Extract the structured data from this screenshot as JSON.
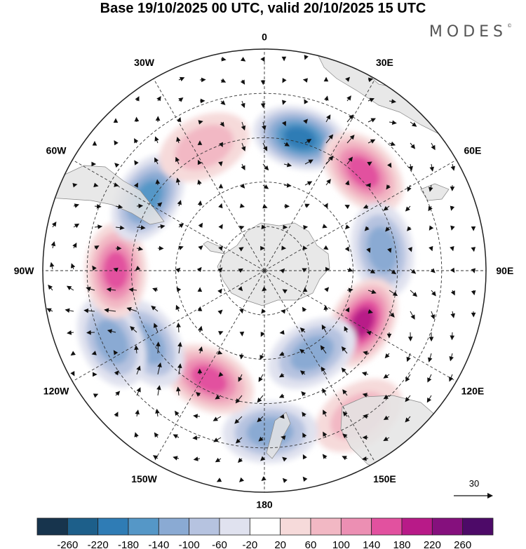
{
  "title": "Base 19/10/2025 00 UTC, valid 20/10/2025 15 UTC",
  "brand": "MODES",
  "brand_mark": "©",
  "longitude_labels": [
    {
      "text": "0",
      "deg": 0
    },
    {
      "text": "30E",
      "deg": 30
    },
    {
      "text": "60E",
      "deg": 60
    },
    {
      "text": "90E",
      "deg": 90
    },
    {
      "text": "120E",
      "deg": 120
    },
    {
      "text": "150E",
      "deg": 150
    },
    {
      "text": "180",
      "deg": 180
    },
    {
      "text": "150W",
      "deg": 210
    },
    {
      "text": "120W",
      "deg": 240
    },
    {
      "text": "90W",
      "deg": 270
    },
    {
      "text": "60W",
      "deg": 300
    },
    {
      "text": "30W",
      "deg": 330
    }
  ],
  "vector_reference": {
    "value": "30"
  },
  "colorbar": {
    "ticks": [
      "-260",
      "-220",
      "-180",
      "-140",
      "-100",
      "-60",
      "-20",
      "20",
      "60",
      "100",
      "140",
      "180",
      "220",
      "260"
    ],
    "colors": [
      "#17344d",
      "#1d5f8a",
      "#2f7cb5",
      "#5597c7",
      "#8aaad3",
      "#b6c3e0",
      "#e0e2ef",
      "#ffffff",
      "#f6dada",
      "#f2b8c4",
      "#ec8fb3",
      "#e2519f",
      "#b81a88",
      "#85107d",
      "#4d0a68"
    ]
  },
  "anomalies": [
    {
      "lon": 15,
      "r": 0.62,
      "value": -210
    },
    {
      "lon": 45,
      "r": 0.63,
      "value": 170
    },
    {
      "lon": 80,
      "r": 0.54,
      "value": -130
    },
    {
      "lon": 118,
      "r": 0.5,
      "value": 220
    },
    {
      "lon": 150,
      "r": 0.43,
      "value": -140
    },
    {
      "lon": 147,
      "r": 0.78,
      "value": 70
    },
    {
      "lon": 178,
      "r": 0.73,
      "value": -120
    },
    {
      "lon": 207,
      "r": 0.55,
      "value": 160
    },
    {
      "lon": 238,
      "r": 0.62,
      "value": -110
    },
    {
      "lon": 245,
      "r": 0.76,
      "value": -130
    },
    {
      "lon": 270,
      "r": 0.67,
      "value": 160
    },
    {
      "lon": 302,
      "r": 0.62,
      "value": -170
    },
    {
      "lon": 334,
      "r": 0.62,
      "value": 100
    }
  ]
}
